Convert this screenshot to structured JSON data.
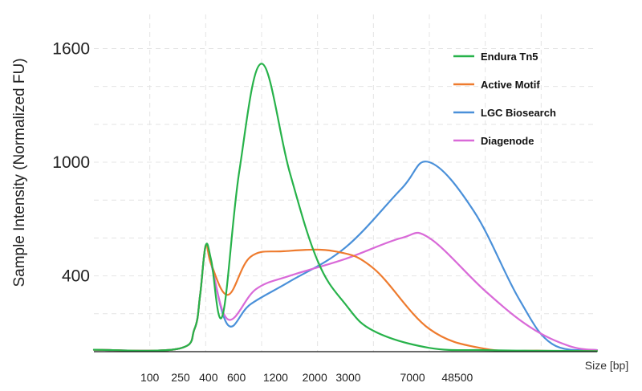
{
  "chart_data": {
    "type": "line",
    "xlabel": "Size [bp]",
    "ylabel": "Sample Intensity (Normalized FU)",
    "ylim": [
      0,
      1780
    ],
    "grid": true,
    "legend_position": "top-right",
    "yticks": [
      400,
      1000,
      1600
    ],
    "xticks": [
      "100",
      "250",
      "400",
      "600",
      "1200",
      "2000",
      "3000",
      "7000",
      "48500"
    ],
    "series": [
      {
        "name": "Endura Tn5",
        "color": "#27b24a",
        "x": [
          0,
          1.5,
          1.8,
          1.9,
          2.0,
          2.1,
          2.3,
          2.6,
          3.0,
          3.5,
          4.0,
          4.5,
          5.0,
          6.0,
          7.0,
          8.0,
          9.0
        ],
        "y": [
          10,
          15,
          120,
          300,
          560,
          480,
          190,
          950,
          1520,
          950,
          480,
          250,
          110,
          20,
          8,
          5,
          3
        ]
      },
      {
        "name": "Active Motif",
        "color": "#ee7b2e",
        "x": [
          0,
          1.5,
          1.8,
          1.9,
          2.0,
          2.1,
          2.4,
          2.8,
          3.4,
          4.3,
          5.0,
          6.0,
          7.0,
          8.0,
          9.0
        ],
        "y": [
          10,
          15,
          120,
          300,
          560,
          460,
          300,
          500,
          530,
          530,
          440,
          120,
          15,
          5,
          3
        ]
      },
      {
        "name": "LGC Biosearch",
        "color": "#4a90d9",
        "x": [
          0,
          1.5,
          1.8,
          1.9,
          2.0,
          2.1,
          2.4,
          2.8,
          3.5,
          4.5,
          5.5,
          6.0,
          6.8,
          7.6,
          8.2,
          9.0
        ],
        "y": [
          10,
          15,
          120,
          300,
          560,
          460,
          140,
          250,
          370,
          550,
          860,
          1000,
          740,
          280,
          40,
          8
        ]
      },
      {
        "name": "Diagenode",
        "color": "#d96ad8",
        "x": [
          0,
          1.5,
          1.8,
          1.9,
          2.0,
          2.1,
          2.4,
          2.9,
          3.5,
          4.5,
          5.5,
          6.0,
          7.0,
          7.8,
          8.5,
          9.0
        ],
        "y": [
          10,
          15,
          120,
          300,
          560,
          460,
          170,
          330,
          400,
          490,
          600,
          600,
          320,
          130,
          30,
          8
        ]
      }
    ]
  }
}
